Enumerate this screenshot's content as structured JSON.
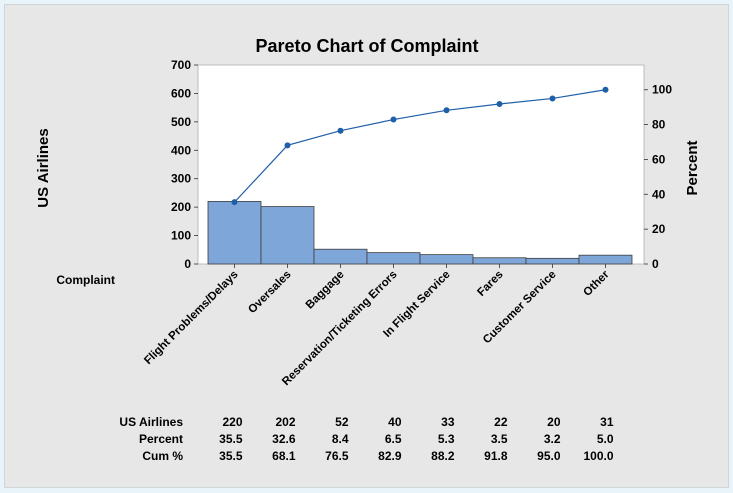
{
  "chart_data": {
    "type": "bar",
    "title": "Pareto Chart of Complaint",
    "xlabel": "Complaint",
    "ylabel": "US Airlines",
    "y2label": "Percent",
    "ylim": [
      0,
      700
    ],
    "yticks": [
      0,
      100,
      200,
      300,
      400,
      500,
      600,
      700
    ],
    "y2lim": [
      0,
      114.2
    ],
    "y2ticks": [
      0,
      20,
      40,
      60,
      80,
      100
    ],
    "categories": [
      "Flight Problems/Delays",
      "Oversales",
      "Baggage",
      "Reservation/Ticketing Errors",
      "In Flight Service",
      "Fares",
      "Customer Service",
      "Other"
    ],
    "series": [
      {
        "name": "US Airlines",
        "type": "bar",
        "values": [
          220,
          202,
          52,
          40,
          33,
          22,
          20,
          31
        ],
        "color": "#7ea6d8"
      },
      {
        "name": "Cum %",
        "type": "line",
        "axis": "right",
        "values": [
          35.5,
          68.1,
          76.5,
          82.9,
          88.2,
          91.8,
          95.0,
          100.0
        ],
        "color": "#1f5fa8"
      }
    ],
    "table": {
      "rows": [
        {
          "label": "US Airlines",
          "values": [
            "220",
            "202",
            "52",
            "40",
            "33",
            "22",
            "20",
            "31"
          ]
        },
        {
          "label": "Percent",
          "values": [
            "35.5",
            "32.6",
            "8.4",
            "6.5",
            "5.3",
            "3.5",
            "3.2",
            "5.0"
          ]
        },
        {
          "label": "Cum %",
          "values": [
            "35.5",
            "68.1",
            "76.5",
            "82.9",
            "88.2",
            "91.8",
            "95.0",
            "100.0"
          ]
        }
      ]
    },
    "grid": false,
    "colors": {
      "bar_fill": "#7ea6d8",
      "bar_stroke": "#3c3c3c",
      "line": "#1f5fa8",
      "plot_bg": "#ffffff"
    }
  }
}
